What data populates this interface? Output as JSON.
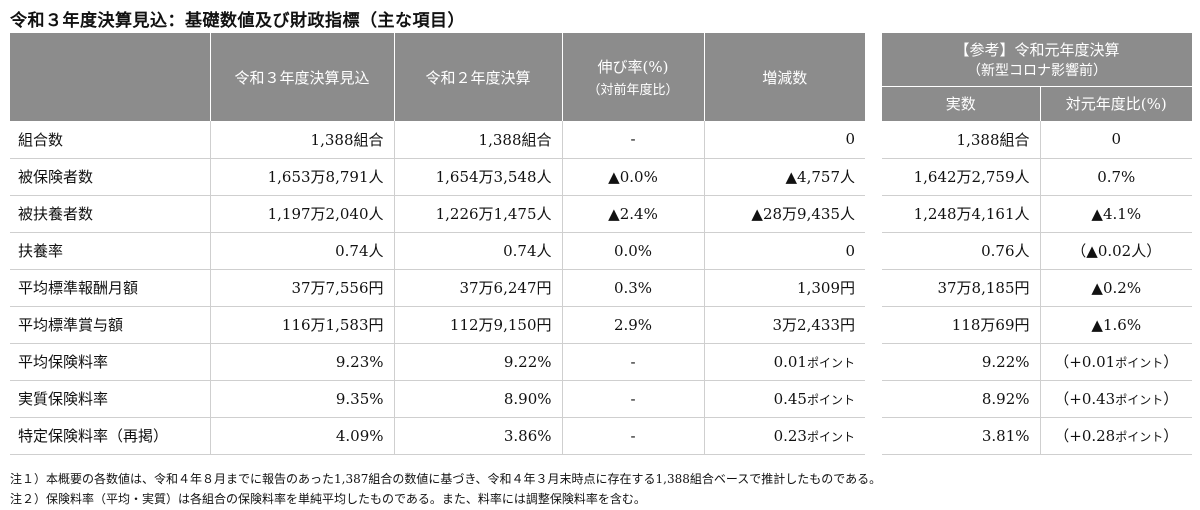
{
  "title": "令和３年度決算見込：基礎数値及び財政指標（主な項目）",
  "main_table": {
    "headers": {
      "col1": "令和３年度決算見込",
      "col2": "令和２年度決算",
      "col3": "伸び率(%)",
      "col3_sub": "（対前年度比）",
      "col4": "増減数"
    },
    "rows": [
      {
        "label": "組合数",
        "r3": "1,388組合",
        "r2": "1,388組合",
        "rate": "-",
        "diff": "0"
      },
      {
        "label": "被保険者数",
        "r3": "1,653万8,791人",
        "r2": "1,654万3,548人",
        "rate": "▲0.0%",
        "diff": "▲4,757人"
      },
      {
        "label": "被扶養者数",
        "r3": "1,197万2,040人",
        "r2": "1,226万1,475人",
        "rate": "▲2.4%",
        "diff": "▲28万9,435人"
      },
      {
        "label": "扶養率",
        "r3": "0.74人",
        "r2": "0.74人",
        "rate": "0.0%",
        "diff": "0"
      },
      {
        "label": "平均標準報酬月額",
        "r3": "37万7,556円",
        "r2": "37万6,247円",
        "rate": "0.3%",
        "diff": "1,309円"
      },
      {
        "label": "平均標準賞与額",
        "r3": "116万1,583円",
        "r2": "112万9,150円",
        "rate": "2.9%",
        "diff": "3万2,433円"
      },
      {
        "label": "平均保険料率",
        "r3": "9.23%",
        "r2": "9.22%",
        "rate": "-",
        "diff_num": "0.01",
        "diff_unit": "ポイント"
      },
      {
        "label": "実質保険料率",
        "r3": "9.35%",
        "r2": "8.90%",
        "rate": "-",
        "diff_num": "0.45",
        "diff_unit": "ポイント"
      },
      {
        "label": "特定保険料率（再掲）",
        "r3": "4.09%",
        "r2": "3.86%",
        "rate": "-",
        "diff_num": "0.23",
        "diff_unit": "ポイント"
      }
    ]
  },
  "ref_table": {
    "header_title": "【参考】令和元年度決算",
    "header_sub": "（新型コロナ影響前）",
    "col1": "実数",
    "col2": "対元年度比(%)",
    "rows": [
      {
        "value": "1,388組合",
        "ratio": "0"
      },
      {
        "value": "1,642万2,759人",
        "ratio": "0.7%"
      },
      {
        "value": "1,248万4,161人",
        "ratio": "▲4.1%"
      },
      {
        "value": "0.76人",
        "ratio": "（▲0.02人）"
      },
      {
        "value": "37万8,185円",
        "ratio": "▲0.2%"
      },
      {
        "value": "118万69円",
        "ratio": "▲1.6%"
      },
      {
        "value": "9.22%",
        "ratio_pre": "（+0.01",
        "ratio_unit": "ポイント",
        "ratio_post": "）"
      },
      {
        "value": "8.92%",
        "ratio_pre": "（+0.43",
        "ratio_unit": "ポイント",
        "ratio_post": "）"
      },
      {
        "value": "3.81%",
        "ratio_pre": "（+0.28",
        "ratio_unit": "ポイント",
        "ratio_post": "）"
      }
    ]
  },
  "notes": [
    "注１）本概要の各数値は、令和４年８月までに報告のあった1,387組合の数値に基づき、令和４年３月末時点に存在する1,388組合ベースで推計したものである。",
    "注２）保険料率（平均・実質）は各組合の保険料率を単純平均したものである。また、料率には調整保険料率を含む。"
  ]
}
